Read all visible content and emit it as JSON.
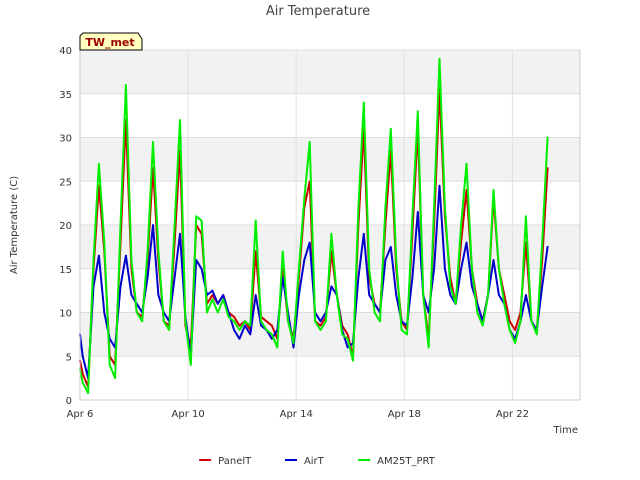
{
  "chart_data": {
    "type": "line",
    "title": "Air Temperature",
    "xlabel": "Time",
    "ylabel": "Air Temperature (C)",
    "station_badge": "TW_met",
    "xlim": [
      6.0,
      24.5
    ],
    "ylim": [
      0,
      40
    ],
    "x_ticks": [
      {
        "day": 6,
        "label": "Apr 6"
      },
      {
        "day": 10,
        "label": "Apr 10"
      },
      {
        "day": 14,
        "label": "Apr 14"
      },
      {
        "day": 18,
        "label": "Apr 18"
      },
      {
        "day": 22,
        "label": "Apr 22"
      }
    ],
    "y_ticks": [
      0,
      5,
      10,
      15,
      20,
      25,
      30,
      35,
      40
    ],
    "grid": true,
    "banded_background": true,
    "legend_position": "bottom",
    "x_unit": "day of April",
    "series": [
      {
        "name": "PanelT",
        "color": "#cc0000",
        "x": [
          6.0,
          6.1,
          6.3,
          6.5,
          6.7,
          6.9,
          7.1,
          7.3,
          7.5,
          7.7,
          7.9,
          8.1,
          8.3,
          8.5,
          8.7,
          8.9,
          9.1,
          9.3,
          9.5,
          9.7,
          9.9,
          10.1,
          10.3,
          10.5,
          10.7,
          10.9,
          11.1,
          11.3,
          11.5,
          11.7,
          11.9,
          12.1,
          12.3,
          12.5,
          12.7,
          12.9,
          13.1,
          13.3,
          13.5,
          13.7,
          13.9,
          14.1,
          14.3,
          14.5,
          14.7,
          14.9,
          15.1,
          15.3,
          15.5,
          15.7,
          15.9,
          16.1,
          16.3,
          16.5,
          16.7,
          16.9,
          17.1,
          17.3,
          17.5,
          17.7,
          17.9,
          18.1,
          18.3,
          18.5,
          18.7,
          18.9,
          19.1,
          19.3,
          19.5,
          19.7,
          19.9,
          20.1,
          20.3,
          20.5,
          20.7,
          20.9,
          21.1,
          21.3,
          21.5,
          21.7,
          21.9,
          22.1,
          22.3,
          22.5,
          22.7,
          22.9,
          23.1,
          23.3
        ],
        "y": [
          4.5,
          3.0,
          1.5,
          15.0,
          24.5,
          17.0,
          5.0,
          4.0,
          18.0,
          32.0,
          15.0,
          10.0,
          9.5,
          16.0,
          26.5,
          16.0,
          9.0,
          8.5,
          18.0,
          28.5,
          8.5,
          6.0,
          20.0,
          19.0,
          11.0,
          12.0,
          11.0,
          12.0,
          10.0,
          9.5,
          8.5,
          9.0,
          8.0,
          17.0,
          9.5,
          9.0,
          8.5,
          7.0,
          15.0,
          9.0,
          7.0,
          14.0,
          22.0,
          25.0,
          9.0,
          8.5,
          9.5,
          17.0,
          12.0,
          8.5,
          7.5,
          5.0,
          20.0,
          31.0,
          14.0,
          11.0,
          10.0,
          20.0,
          28.5,
          15.0,
          9.0,
          8.0,
          19.0,
          31.0,
          12.0,
          7.0,
          20.0,
          35.5,
          21.0,
          14.0,
          11.0,
          18.0,
          24.0,
          15.0,
          11.0,
          9.0,
          12.0,
          23.0,
          15.0,
          12.0,
          9.0,
          8.0,
          10.0,
          18.0,
          9.0,
          8.0,
          16.0,
          26.5
        ]
      },
      {
        "name": "AirT",
        "color": "#0000cc",
        "x": [
          6.0,
          6.1,
          6.3,
          6.5,
          6.7,
          6.9,
          7.1,
          7.3,
          7.5,
          7.7,
          7.9,
          8.1,
          8.3,
          8.5,
          8.7,
          8.9,
          9.1,
          9.3,
          9.5,
          9.7,
          9.9,
          10.1,
          10.3,
          10.5,
          10.7,
          10.9,
          11.1,
          11.3,
          11.5,
          11.7,
          11.9,
          12.1,
          12.3,
          12.5,
          12.7,
          12.9,
          13.1,
          13.3,
          13.5,
          13.7,
          13.9,
          14.1,
          14.3,
          14.5,
          14.7,
          14.9,
          15.1,
          15.3,
          15.5,
          15.7,
          15.9,
          16.1,
          16.3,
          16.5,
          16.7,
          16.9,
          17.1,
          17.3,
          17.5,
          17.7,
          17.9,
          18.1,
          18.3,
          18.5,
          18.7,
          18.9,
          19.1,
          19.3,
          19.5,
          19.7,
          19.9,
          20.1,
          20.3,
          20.5,
          20.7,
          20.9,
          21.1,
          21.3,
          21.5,
          21.7,
          21.9,
          22.1,
          22.3,
          22.5,
          22.7,
          22.9,
          23.1,
          23.3
        ],
        "y": [
          7.5,
          5.0,
          2.5,
          13.0,
          16.5,
          10.0,
          7.0,
          6.0,
          13.0,
          16.5,
          12.0,
          11.0,
          10.0,
          14.0,
          20.0,
          12.0,
          10.0,
          9.0,
          14.0,
          19.0,
          9.5,
          5.0,
          16.0,
          15.0,
          12.0,
          12.5,
          11.0,
          12.0,
          10.0,
          8.0,
          7.0,
          8.5,
          7.5,
          12.0,
          8.5,
          8.0,
          7.0,
          8.0,
          14.0,
          10.0,
          6.0,
          12.0,
          16.0,
          18.0,
          10.0,
          9.0,
          10.0,
          13.0,
          12.0,
          8.0,
          6.0,
          6.5,
          14.0,
          19.0,
          12.0,
          11.0,
          10.0,
          16.0,
          17.5,
          12.0,
          9.0,
          8.5,
          14.0,
          21.5,
          12.0,
          10.0,
          15.0,
          24.5,
          15.0,
          12.0,
          11.0,
          15.0,
          18.0,
          13.0,
          11.0,
          9.0,
          12.0,
          16.0,
          12.0,
          11.0,
          8.0,
          7.0,
          9.0,
          12.0,
          9.0,
          8.0,
          13.0,
          17.5
        ]
      },
      {
        "name": "AM25T_PRT",
        "color": "#00ee00",
        "x": [
          6.0,
          6.1,
          6.3,
          6.5,
          6.7,
          6.9,
          7.1,
          7.3,
          7.5,
          7.7,
          7.9,
          8.1,
          8.3,
          8.5,
          8.7,
          8.9,
          9.1,
          9.3,
          9.5,
          9.7,
          9.9,
          10.1,
          10.3,
          10.5,
          10.7,
          10.9,
          11.1,
          11.3,
          11.5,
          11.7,
          11.9,
          12.1,
          12.3,
          12.5,
          12.7,
          12.9,
          13.1,
          13.3,
          13.5,
          13.7,
          13.9,
          14.1,
          14.3,
          14.5,
          14.7,
          14.9,
          15.1,
          15.3,
          15.5,
          15.7,
          15.9,
          16.1,
          16.3,
          16.5,
          16.7,
          16.9,
          17.1,
          17.3,
          17.5,
          17.7,
          17.9,
          18.1,
          18.3,
          18.5,
          18.7,
          18.9,
          19.1,
          19.3,
          19.5,
          19.7,
          19.9,
          20.1,
          20.3,
          20.5,
          20.7,
          20.9,
          21.1,
          21.3,
          21.5,
          21.7,
          21.9,
          22.1,
          22.3,
          22.5,
          22.7,
          22.9,
          23.1,
          23.3
        ],
        "y": [
          3.5,
          2.0,
          0.8,
          16.0,
          27.0,
          18.0,
          4.0,
          2.5,
          20.0,
          36.0,
          16.0,
          10.0,
          9.0,
          17.0,
          29.5,
          17.0,
          9.0,
          8.0,
          20.0,
          32.0,
          9.0,
          4.0,
          21.0,
          20.5,
          10.0,
          11.5,
          10.0,
          11.5,
          9.5,
          9.0,
          8.0,
          9.0,
          8.5,
          20.5,
          9.0,
          8.0,
          7.5,
          6.0,
          17.0,
          9.0,
          6.5,
          15.0,
          23.0,
          29.5,
          9.0,
          8.0,
          9.0,
          19.0,
          12.0,
          7.5,
          7.0,
          4.5,
          22.0,
          34.0,
          15.0,
          10.0,
          9.0,
          22.0,
          31.0,
          16.0,
          8.0,
          7.5,
          21.0,
          33.0,
          12.0,
          6.0,
          22.0,
          39.0,
          22.0,
          13.0,
          11.0,
          20.0,
          27.0,
          15.0,
          10.0,
          8.5,
          12.0,
          24.0,
          15.0,
          11.0,
          8.0,
          6.5,
          9.0,
          21.0,
          9.0,
          7.5,
          18.0,
          30.0
        ]
      }
    ]
  }
}
